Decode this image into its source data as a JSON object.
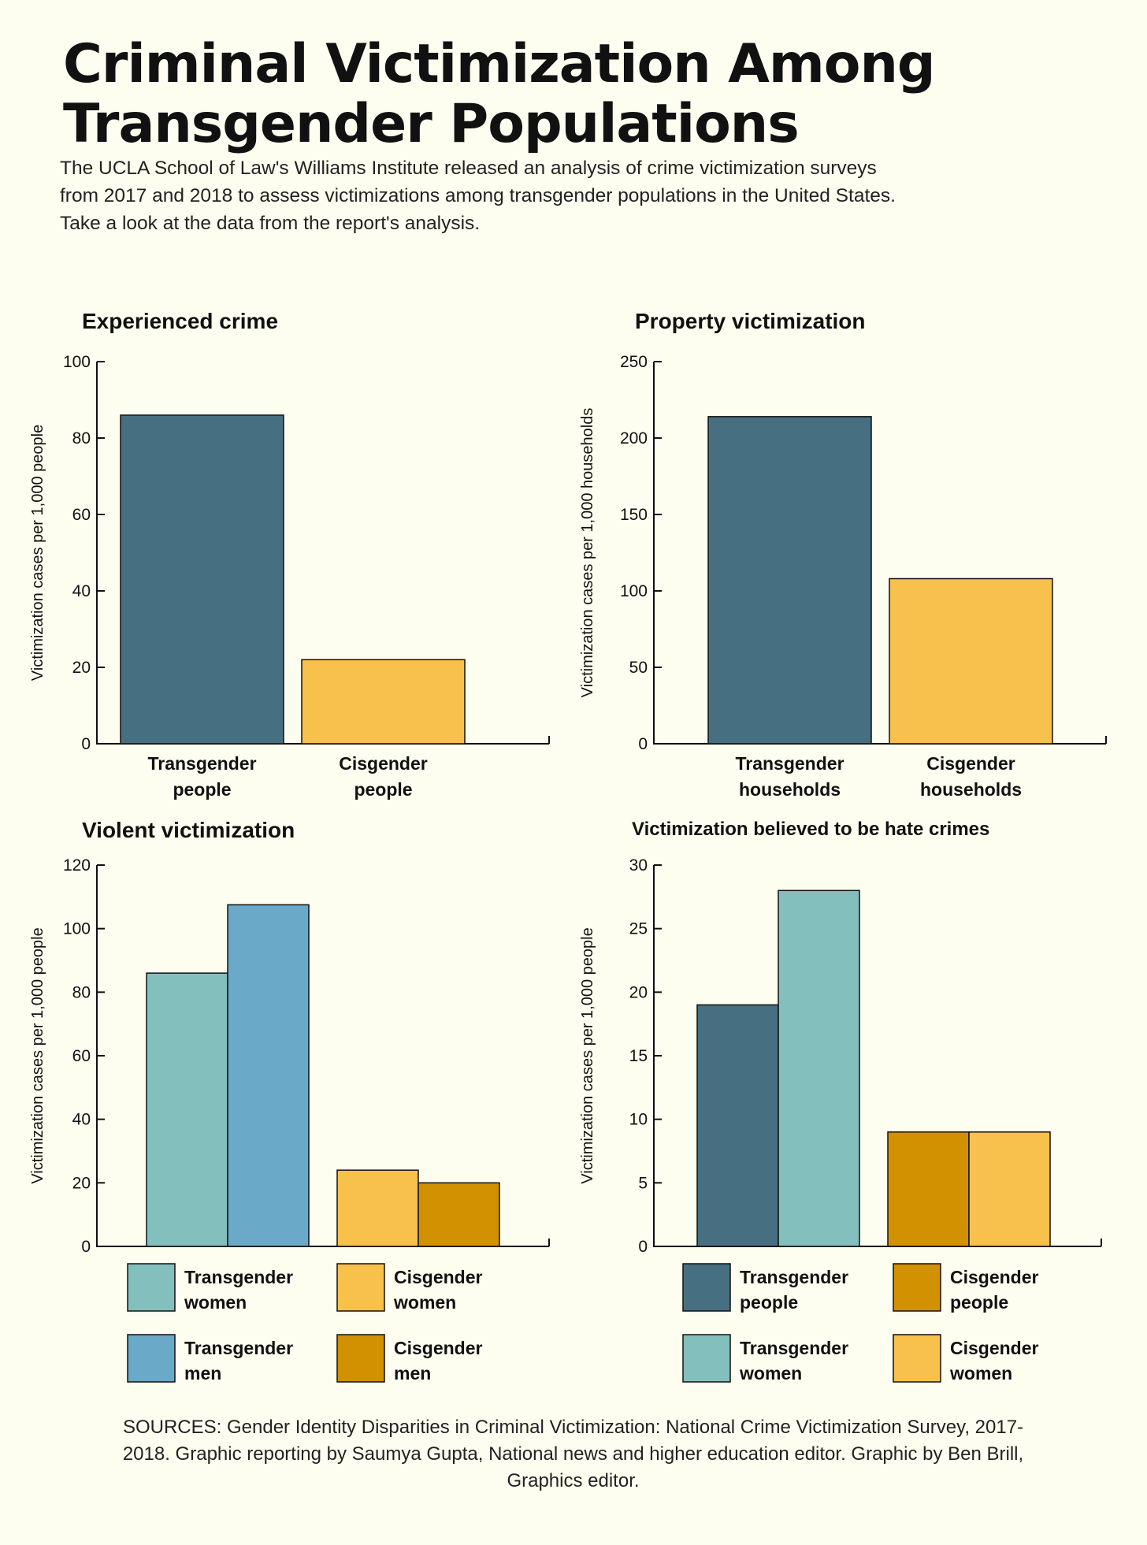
{
  "header": {
    "title": "Criminal Victimization Among Transgender Populations",
    "subtitle": "The UCLA School of Law's Williams Institute released an analysis of crime victimization surveys from 2017 and 2018 to assess victimizations among transgender populations in the United States. Take a look at the data from the report's analysis."
  },
  "footer": {
    "sources": "SOURCES: Gender Identity Disparities in Criminal Victimization: National Crime Victimization Survey, 2017-2018. Graphic reporting by Saumya Gupta, National news and higher education editor. Graphic by Ben Brill, Graphics editor."
  },
  "chart_data": [
    {
      "type": "bar",
      "title": "Experienced crime",
      "ylabel": "Victimization cases per 1,000 people",
      "ylim": [
        0,
        100
      ],
      "yticks": [
        0,
        20,
        40,
        60,
        80,
        100
      ],
      "categories": [
        [
          "Transgender",
          "people"
        ],
        [
          "Cisgender",
          "people"
        ]
      ],
      "values": [
        86,
        22
      ],
      "colors": [
        "#476f82",
        "#f8c14c"
      ]
    },
    {
      "type": "bar",
      "title": "Property victimization",
      "ylabel": "Victimization cases per 1,000 households",
      "ylim": [
        0,
        250
      ],
      "yticks": [
        0,
        50,
        100,
        150,
        200,
        250
      ],
      "categories": [
        [
          "Transgender",
          "households"
        ],
        [
          "Cisgender",
          "households"
        ]
      ],
      "values": [
        214,
        108
      ],
      "colors": [
        "#476f82",
        "#f8c14c"
      ]
    },
    {
      "type": "bar",
      "title": "Violent victimization",
      "ylabel": "Victimization cases per 1,000 people",
      "ylim": [
        0,
        120
      ],
      "yticks": [
        0,
        20,
        40,
        60,
        80,
        100,
        120
      ],
      "groups": [
        [
          {
            "name": [
              "Transgender",
              "women"
            ],
            "value": 86,
            "color": "#83bfbd"
          },
          {
            "name": [
              "Transgender",
              "men"
            ],
            "value": 107.5,
            "color": "#6aa9c7"
          }
        ],
        [
          {
            "name": [
              "Cisgender",
              "women"
            ],
            "value": 24,
            "color": "#f8c14c"
          },
          {
            "name": [
              "Cisgender",
              "men"
            ],
            "value": 20,
            "color": "#d29100"
          }
        ]
      ],
      "legend": [
        {
          "label": [
            "Transgender",
            "women"
          ],
          "color": "#83bfbd"
        },
        {
          "label": [
            "Cisgender",
            "women"
          ],
          "color": "#f8c14c"
        },
        {
          "label": [
            "Transgender",
            "men"
          ],
          "color": "#6aa9c7"
        },
        {
          "label": [
            "Cisgender",
            "men"
          ],
          "color": "#d29100"
        }
      ],
      "legend_placement": "bottom"
    },
    {
      "type": "bar",
      "title": "Victimization believed to be hate crimes",
      "ylabel": "Victimization cases per 1,000 people",
      "ylim": [
        0,
        30
      ],
      "yticks": [
        0,
        5,
        10,
        15,
        20,
        25,
        30
      ],
      "groups": [
        [
          {
            "name": [
              "Transgender",
              "people"
            ],
            "value": 19,
            "color": "#476f82"
          },
          {
            "name": [
              "Transgender",
              "women"
            ],
            "value": 28,
            "color": "#83bfbd"
          }
        ],
        [
          {
            "name": [
              "Cisgender",
              "people"
            ],
            "value": 9,
            "color": "#d29100"
          },
          {
            "name": [
              "Cisgender",
              "women"
            ],
            "value": 9,
            "color": "#f8c14c"
          }
        ]
      ],
      "legend": [
        {
          "label": [
            "Transgender",
            "people"
          ],
          "color": "#476f82"
        },
        {
          "label": [
            "Cisgender",
            "people"
          ],
          "color": "#d29100"
        },
        {
          "label": [
            "Transgender",
            "women"
          ],
          "color": "#83bfbd"
        },
        {
          "label": [
            "Cisgender",
            "women"
          ],
          "color": "#f8c14c"
        }
      ],
      "legend_placement": "bottom"
    }
  ]
}
